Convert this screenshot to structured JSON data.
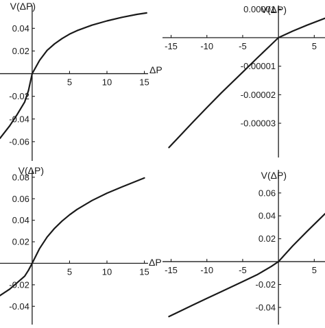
{
  "chart_data": [
    {
      "type": "line",
      "xlabel": "ΔP",
      "ylabel": "V(ΔP)",
      "xlim": [
        -4.3,
        15.5
      ],
      "ylim": [
        -0.077,
        0.065
      ],
      "x_ticks": [
        {
          "value": 5,
          "label": "5"
        },
        {
          "value": 10,
          "label": "10"
        },
        {
          "value": 15,
          "label": "15"
        }
      ],
      "y_ticks": [
        {
          "value": 0.04,
          "label": "0.04"
        },
        {
          "value": 0.02,
          "label": "0.02"
        },
        {
          "value": -0.02,
          "label": "-0.02"
        },
        {
          "value": -0.04,
          "label": "-0.04"
        },
        {
          "value": -0.06,
          "label": "-0.06"
        }
      ],
      "x": [
        -4.3,
        -3,
        -2,
        -1,
        -0.5,
        0,
        1,
        2,
        3,
        4,
        5,
        6,
        8,
        10,
        12,
        14,
        15.3
      ],
      "y": [
        -0.057,
        -0.046,
        -0.036,
        -0.025,
        -0.015,
        0,
        0.0118,
        0.0205,
        0.0263,
        0.031,
        0.0349,
        0.038,
        0.0428,
        0.0466,
        0.0497,
        0.0523,
        0.0536
      ]
    },
    {
      "type": "line",
      "xlabel": "",
      "ylabel": "V(ΔP)",
      "xlim": [
        -16.2,
        6.5
      ],
      "ylim": [
        -4.2e-05,
        1.32e-05
      ],
      "x_ticks": [
        {
          "value": -15,
          "label": "-15"
        },
        {
          "value": -10,
          "label": "-10"
        },
        {
          "value": -5,
          "label": "-5"
        },
        {
          "value": 5,
          "label": "5"
        }
      ],
      "y_ticks": [
        {
          "value": 1e-05,
          "label": "0.00001"
        },
        {
          "value": -1e-05,
          "label": "-0.00001"
        },
        {
          "value": -2e-05,
          "label": "-0.00002"
        },
        {
          "value": -3e-05,
          "label": "-0.00003"
        }
      ],
      "x": [
        -15.3,
        -12,
        -10,
        -8,
        -5,
        -3,
        -1,
        0,
        2,
        4,
        6.5
      ],
      "y": [
        -3.85e-05,
        -2.97e-05,
        -2.45e-05,
        -1.94e-05,
        -1.21e-05,
        -7.2e-06,
        -2.4e-06,
        0,
        2.3e-06,
        4.4e-06,
        6.8e-06
      ]
    },
    {
      "type": "line",
      "xlabel": "ΔP",
      "ylabel": "V(ΔP)",
      "xlim": [
        -4.3,
        15.5
      ],
      "ylim": [
        -0.057,
        0.092
      ],
      "x_ticks": [
        {
          "value": 5,
          "label": "5"
        },
        {
          "value": 10,
          "label": "10"
        },
        {
          "value": 15,
          "label": "15"
        }
      ],
      "y_ticks": [
        {
          "value": 0.08,
          "label": "0.08"
        },
        {
          "value": 0.06,
          "label": "0.06"
        },
        {
          "value": 0.04,
          "label": "0.04"
        },
        {
          "value": 0.02,
          "label": "0.02"
        },
        {
          "value": -0.02,
          "label": "-0.02"
        },
        {
          "value": -0.04,
          "label": "-0.04"
        }
      ],
      "x": [
        -4.3,
        -3,
        -2,
        -1,
        -0.5,
        0,
        1,
        2,
        3,
        4,
        5,
        6,
        8,
        10,
        12,
        15
      ],
      "y": [
        -0.03,
        -0.024,
        -0.018,
        -0.012,
        -0.0065,
        0,
        0.0138,
        0.0244,
        0.0325,
        0.0393,
        0.0451,
        0.0501,
        0.0584,
        0.0652,
        0.071,
        0.0793
      ]
    },
    {
      "type": "line",
      "xlabel": "",
      "ylabel": "V(ΔP)",
      "xlim": [
        -16.2,
        6.5
      ],
      "ylim": [
        -0.055,
        0.085
      ],
      "x_ticks": [
        {
          "value": -15,
          "label": "-15"
        },
        {
          "value": -10,
          "label": "-10"
        },
        {
          "value": -5,
          "label": "-5"
        },
        {
          "value": 5,
          "label": "5"
        }
      ],
      "y_ticks": [
        {
          "value": 0.06,
          "label": "0.06"
        },
        {
          "value": 0.04,
          "label": "0.04"
        },
        {
          "value": 0.02,
          "label": "0.02"
        },
        {
          "value": -0.02,
          "label": "-0.02"
        },
        {
          "value": -0.04,
          "label": "-0.04"
        }
      ],
      "x": [
        -15.3,
        -12,
        -10,
        -8,
        -5,
        -3,
        -1,
        0,
        2,
        4,
        6.5
      ],
      "y": [
        -0.048,
        -0.038,
        -0.0321,
        -0.0263,
        -0.0175,
        -0.0115,
        -0.0042,
        0,
        0.0138,
        0.0265,
        0.0418
      ]
    }
  ]
}
